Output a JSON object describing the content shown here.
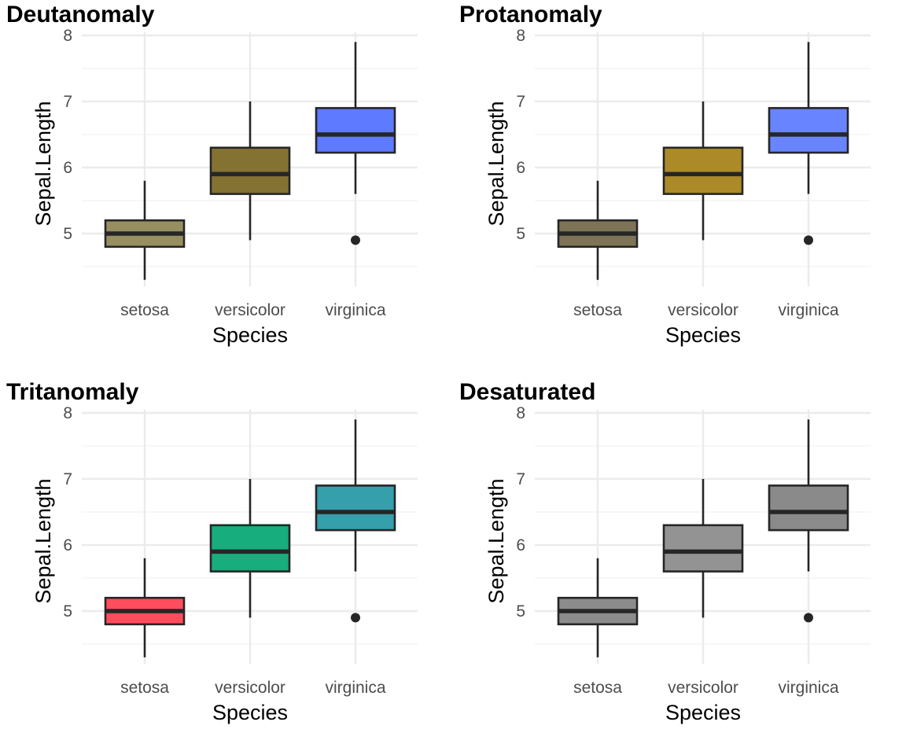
{
  "chart_data": [
    {
      "type": "box",
      "title": "Deutanomaly",
      "xlabel": "Species",
      "ylabel": "Sepal.Length",
      "categories": [
        "setosa",
        "versicolor",
        "virginica"
      ],
      "ylim": [
        4.2,
        8.05
      ],
      "yticks": [
        5,
        6,
        7,
        8
      ],
      "grid": true,
      "boxes": [
        {
          "category": "setosa",
          "whisker_low": 4.3,
          "q1": 4.8,
          "median": 5.0,
          "q3": 5.2,
          "whisker_high": 5.8,
          "outliers": [],
          "fill": "#988F60"
        },
        {
          "category": "versicolor",
          "whisker_low": 4.9,
          "q1": 5.6,
          "median": 5.9,
          "q3": 6.3,
          "whisker_high": 7.0,
          "outliers": [],
          "fill": "#847233"
        },
        {
          "category": "virginica",
          "whisker_low": 5.6,
          "q1": 6.225,
          "median": 6.5,
          "q3": 6.9,
          "whisker_high": 7.9,
          "outliers": [
            4.9
          ],
          "fill": "#5E7AFF"
        }
      ]
    },
    {
      "type": "box",
      "title": "Protanomaly",
      "xlabel": "Species",
      "ylabel": "Sepal.Length",
      "categories": [
        "setosa",
        "versicolor",
        "virginica"
      ],
      "ylim": [
        4.2,
        8.05
      ],
      "yticks": [
        5,
        6,
        7,
        8
      ],
      "grid": true,
      "boxes": [
        {
          "category": "setosa",
          "whisker_low": 4.3,
          "q1": 4.8,
          "median": 5.0,
          "q3": 5.2,
          "whisker_high": 5.8,
          "outliers": [],
          "fill": "#7E7356"
        },
        {
          "category": "versicolor",
          "whisker_low": 4.9,
          "q1": 5.6,
          "median": 5.9,
          "q3": 6.3,
          "whisker_high": 7.0,
          "outliers": [],
          "fill": "#AD8A28"
        },
        {
          "category": "virginica",
          "whisker_low": 5.6,
          "q1": 6.225,
          "median": 6.5,
          "q3": 6.9,
          "whisker_high": 7.9,
          "outliers": [
            4.9
          ],
          "fill": "#6884FF"
        }
      ]
    },
    {
      "type": "box",
      "title": "Tritanomaly",
      "xlabel": "Species",
      "ylabel": "Sepal.Length",
      "categories": [
        "setosa",
        "versicolor",
        "virginica"
      ],
      "ylim": [
        4.2,
        8.05
      ],
      "yticks": [
        5,
        6,
        7,
        8
      ],
      "grid": true,
      "boxes": [
        {
          "category": "setosa",
          "whisker_low": 4.3,
          "q1": 4.8,
          "median": 5.0,
          "q3": 5.2,
          "whisker_high": 5.8,
          "outliers": [],
          "fill": "#FF4D5E"
        },
        {
          "category": "versicolor",
          "whisker_low": 4.9,
          "q1": 5.6,
          "median": 5.9,
          "q3": 6.3,
          "whisker_high": 7.0,
          "outliers": [],
          "fill": "#17AD7D"
        },
        {
          "category": "virginica",
          "whisker_low": 5.6,
          "q1": 6.225,
          "median": 6.5,
          "q3": 6.9,
          "whisker_high": 7.9,
          "outliers": [
            4.9
          ],
          "fill": "#369FAC"
        }
      ]
    },
    {
      "type": "box",
      "title": "Desaturated",
      "xlabel": "Species",
      "ylabel": "Sepal.Length",
      "categories": [
        "setosa",
        "versicolor",
        "virginica"
      ],
      "ylim": [
        4.2,
        8.05
      ],
      "yticks": [
        5,
        6,
        7,
        8
      ],
      "grid": true,
      "boxes": [
        {
          "category": "setosa",
          "whisker_low": 4.3,
          "q1": 4.8,
          "median": 5.0,
          "q3": 5.2,
          "whisker_high": 5.8,
          "outliers": [],
          "fill": "#8C8C8C"
        },
        {
          "category": "versicolor",
          "whisker_low": 4.9,
          "q1": 5.6,
          "median": 5.9,
          "q3": 6.3,
          "whisker_high": 7.0,
          "outliers": [],
          "fill": "#939393"
        },
        {
          "category": "virginica",
          "whisker_low": 5.6,
          "q1": 6.225,
          "median": 6.5,
          "q3": 6.9,
          "whisker_high": 7.9,
          "outliers": [
            4.9
          ],
          "fill": "#8A8A8A"
        }
      ]
    }
  ],
  "colors": {
    "grid_major": "#EBEBEB",
    "grid_minor": "#F2F2F2",
    "box_outline": "#262626",
    "tick_text": "#4D4D4D"
  }
}
